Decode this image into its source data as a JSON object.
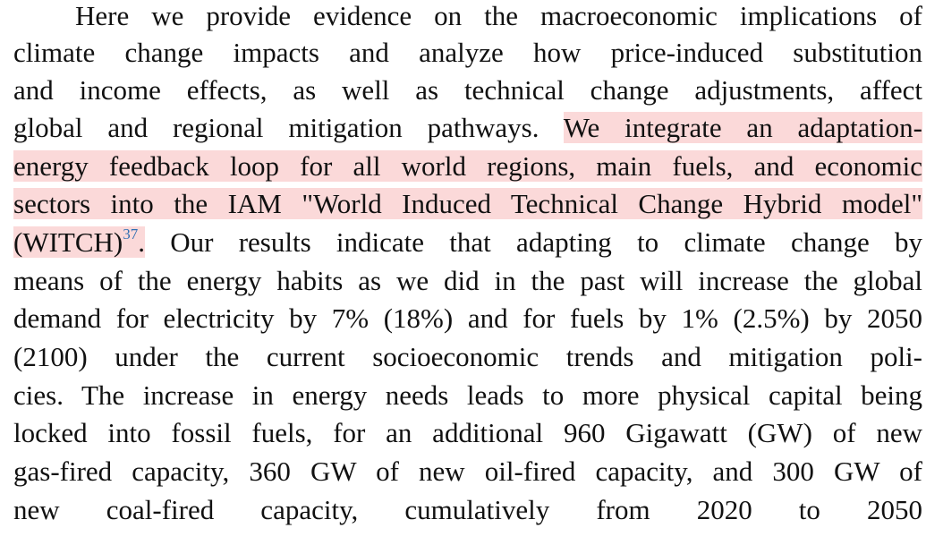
{
  "document": {
    "lines": [
      {
        "text": "Here we provide evidence on the macroeconomic implications of"
      },
      {
        "text": "climate change impacts and analyze how price-induced substitution"
      },
      {
        "text": "and income effects, as well as technical change adjustments, affect"
      },
      {
        "before": "global and regional mitigation pathways. ",
        "highlight": "We integrate an adaptation-"
      },
      {
        "highlight": "energy feedback loop for all world regions, main fuels, and economic"
      },
      {
        "highlight": "sectors into the IAM \"World Induced Technical Change Hybrid model\""
      },
      {
        "highlight": "(WITCH)",
        "citation": "37",
        "highlight_end": ".",
        "after": " Our results indicate that adapting to climate change by"
      },
      {
        "text": "means of the energy habits as we did in the past will increase the global"
      },
      {
        "text": "demand for electricity by 7% (18%) and for fuels by 1% (2.5%) by 2050"
      },
      {
        "text": "(2100) under the current socioeconomic trends and mitigation poli-"
      },
      {
        "text": "cies. The increase in energy needs leads to more physical capital being"
      },
      {
        "text": "locked into fossil fuels, for an additional 960 Gigawatt (GW) of new"
      },
      {
        "text": "gas-fired capacity, 360 GW of new oil-fired capacity, and 300 GW of"
      },
      {
        "text": "new coal-fired capacity, cumulatively from 2020 to 2050"
      }
    ]
  },
  "colors": {
    "highlight": "#fbd9d9",
    "citation_link": "#2f6fb3",
    "text": "#111111"
  }
}
